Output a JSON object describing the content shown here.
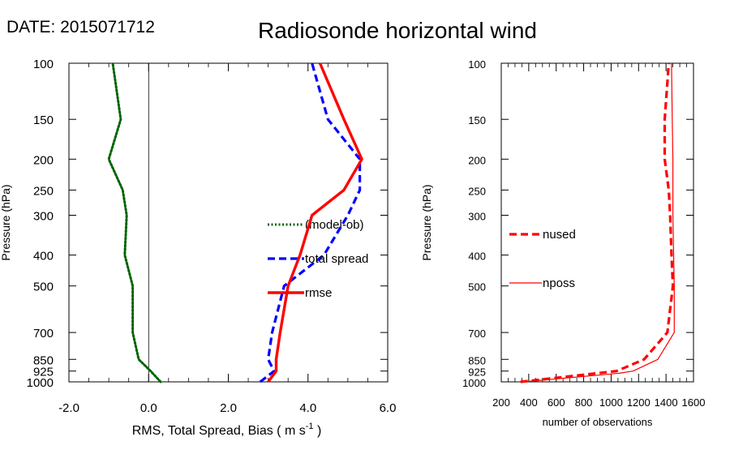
{
  "header": {
    "date_label": "DATE: 2015071712",
    "title": "Radiosonde horizontal wind"
  },
  "chart_data": [
    {
      "type": "line",
      "xlabel": "RMS, Total Spread, Bias ( m s",
      "xlabel_sup": "-1",
      "xlabel_end": " )",
      "ylabel": "Pressure (hPa)",
      "xlim": [
        -2.0,
        6.0
      ],
      "xticks": [
        -2.0,
        0.0,
        2.0,
        4.0,
        6.0
      ],
      "xtick_labels": [
        "-2.0",
        "0.0",
        "2.0",
        "4.0",
        "6.0"
      ],
      "ylim": [
        1000,
        100
      ],
      "y_scale": "log",
      "yticks": [
        100,
        150,
        200,
        250,
        300,
        400,
        500,
        700,
        850,
        925,
        1000
      ],
      "ytick_labels": [
        "100",
        "150",
        "200",
        "250",
        "300",
        "400",
        "500",
        "700",
        "850",
        "925",
        "1000"
      ],
      "zero_line": true,
      "legend_position": "right",
      "series": [
        {
          "name": "(model-ob)",
          "color": "#006400",
          "style": "dotted",
          "points": [
            [
              0.3,
              1000
            ],
            [
              0.05,
              925
            ],
            [
              -0.25,
              850
            ],
            [
              -0.4,
              700
            ],
            [
              -0.4,
              500
            ],
            [
              -0.6,
              400
            ],
            [
              -0.55,
              300
            ],
            [
              -0.65,
              250
            ],
            [
              -1.0,
              200
            ],
            [
              -0.7,
              150
            ],
            [
              -0.9,
              100
            ]
          ]
        },
        {
          "name": "total spread",
          "color": "#0000ff",
          "style": "dashed",
          "points": [
            [
              2.8,
              1000
            ],
            [
              3.15,
              925
            ],
            [
              3.0,
              850
            ],
            [
              3.1,
              700
            ],
            [
              3.4,
              500
            ],
            [
              4.4,
              400
            ],
            [
              5.0,
              300
            ],
            [
              5.3,
              250
            ],
            [
              5.3,
              200
            ],
            [
              4.5,
              150
            ],
            [
              4.1,
              100
            ]
          ]
        },
        {
          "name": "rmse",
          "color": "#ff0000",
          "style": "solid",
          "points": [
            [
              3.0,
              1000
            ],
            [
              3.2,
              925
            ],
            [
              3.2,
              850
            ],
            [
              3.3,
              700
            ],
            [
              3.5,
              500
            ],
            [
              3.8,
              400
            ],
            [
              4.1,
              300
            ],
            [
              4.9,
              250
            ],
            [
              5.35,
              200
            ],
            [
              4.9,
              150
            ],
            [
              4.3,
              100
            ]
          ]
        }
      ]
    },
    {
      "type": "line",
      "xlabel": "number of observations",
      "ylabel": "Pressure (hPa)",
      "xlim": [
        200,
        1600
      ],
      "xticks": [
        200,
        400,
        600,
        800,
        1000,
        1200,
        1400,
        1600
      ],
      "xtick_labels": [
        "200",
        "400",
        "600",
        "800",
        "1000",
        "1200",
        "1400",
        "1600"
      ],
      "ylim": [
        1000,
        100
      ],
      "y_scale": "log",
      "yticks": [
        100,
        150,
        200,
        250,
        300,
        400,
        500,
        700,
        850,
        925,
        1000
      ],
      "ytick_labels": [
        "100",
        "150",
        "200",
        "250",
        "300",
        "400",
        "500",
        "700",
        "850",
        "925",
        "1000"
      ],
      "legend_position": "left",
      "series": [
        {
          "name": "nused",
          "color": "#ff0000",
          "style": "dashed",
          "points": [
            [
              340,
              1000
            ],
            [
              1040,
              925
            ],
            [
              1240,
              850
            ],
            [
              1410,
              700
            ],
            [
              1450,
              500
            ],
            [
              1440,
              400
            ],
            [
              1430,
              300
            ],
            [
              1420,
              250
            ],
            [
              1390,
              200
            ],
            [
              1390,
              150
            ],
            [
              1420,
              100
            ]
          ]
        },
        {
          "name": "nposs",
          "color": "#ff0000",
          "style": "thin",
          "points": [
            [
              360,
              1000
            ],
            [
              1060,
              940
            ],
            [
              1160,
              925
            ],
            [
              1340,
              850
            ],
            [
              1460,
              700
            ],
            [
              1460,
              500
            ],
            [
              1455,
              400
            ],
            [
              1450,
              300
            ],
            [
              1450,
              200
            ],
            [
              1445,
              150
            ],
            [
              1440,
              100
            ]
          ]
        }
      ]
    }
  ]
}
